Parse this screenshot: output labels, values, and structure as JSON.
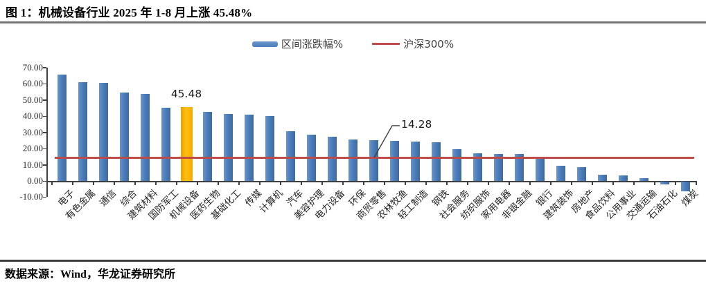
{
  "figure": {
    "title": "图 1：机械设备行业 2025 年 1-8 月上涨 45.48%",
    "source": "数据来源：Wind，华龙证券研究所"
  },
  "chart_data": {
    "type": "bar",
    "title": "机械设备行业 2025 年 1-8 月区间涨跌幅",
    "legend": [
      {
        "label": "区间涨跌幅%",
        "type": "bar",
        "color": "#4a7ebb"
      },
      {
        "label": "沪深300%",
        "type": "line",
        "color": "#be4b48"
      }
    ],
    "legend_position": "top-center",
    "categories": [
      "电子",
      "有色金属",
      "通信",
      "综合",
      "建筑材料",
      "国防军工",
      "机械设备",
      "医药生物",
      "基础化工",
      "传媒",
      "计算机",
      "汽车",
      "美容护理",
      "电力设备",
      "环保",
      "商贸零售",
      "农林牧渔",
      "轻工制造",
      "钢铁",
      "社会服务",
      "纺织服饰",
      "家用电器",
      "非银金融",
      "银行",
      "建筑装饰",
      "房地产",
      "食品饮料",
      "公用事业",
      "交通运输",
      "石油石化",
      "煤炭"
    ],
    "values": [
      65.7,
      60.9,
      60.5,
      54.5,
      53.5,
      45.3,
      45.48,
      42.4,
      41.3,
      40.9,
      39.9,
      30.8,
      28.7,
      27.3,
      25.6,
      25.1,
      24.7,
      24.3,
      24.0,
      19.6,
      17.2,
      16.7,
      16.6,
      13.9,
      9.5,
      8.7,
      3.7,
      3.4,
      1.8,
      -1.8,
      -5.9
    ],
    "series_name": "区间涨跌幅%",
    "bar_color": "#4a7ebb",
    "highlight": {
      "category": "机械设备",
      "index": 6,
      "color": "#fdb813",
      "label": "45.48"
    },
    "benchmark": {
      "name": "沪深300%",
      "value": 14.28,
      "label": "14.28",
      "color": "#be4b48"
    },
    "ylim": [
      -10,
      70
    ],
    "ytick_step": 10,
    "ytick_labels": [
      "70.00",
      "60.00",
      "50.00",
      "40.00",
      "30.00",
      "20.00",
      "10.00",
      "0.00",
      "-10.00"
    ],
    "grid": false
  }
}
